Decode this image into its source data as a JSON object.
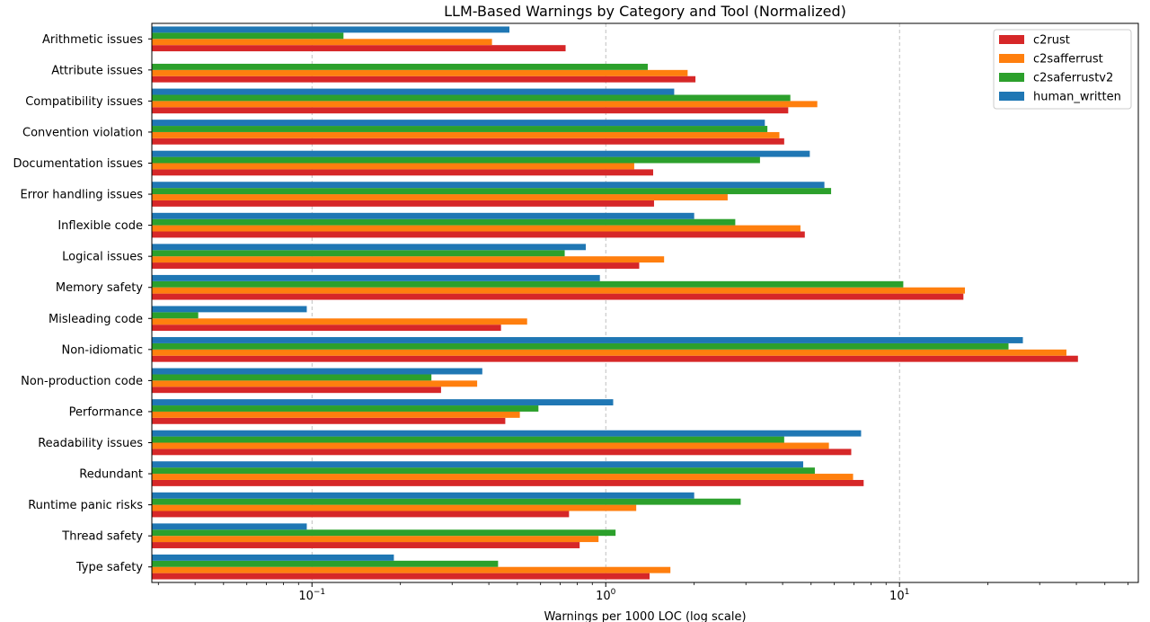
{
  "chart_data": {
    "type": "bar",
    "orientation": "horizontal",
    "title": "LLM-Based Warnings by Category and Tool (Normalized)",
    "xlabel": "Warnings per 1000 LOC (log scale)",
    "ylabel": "",
    "xscale": "log",
    "xlim": [
      0.0285,
      65
    ],
    "x_ticks": [
      {
        "value": 0.1,
        "base": "10",
        "exp": "−1"
      },
      {
        "value": 1,
        "base": "10",
        "exp": "0"
      },
      {
        "value": 10,
        "base": "10",
        "exp": "1"
      }
    ],
    "grid": "x-major dashed",
    "legend_position": "top-right",
    "categories": [
      "Arithmetic issues",
      "Attribute issues",
      "Compatibility issues",
      "Convention violation",
      "Documentation issues",
      "Error handling issues",
      "Inflexible code",
      "Logical issues",
      "Memory safety",
      "Misleading code",
      "Non-idiomatic",
      "Non-production code",
      "Performance",
      "Readability issues",
      "Redundant",
      "Runtime panic risks",
      "Thread safety",
      "Type safety"
    ],
    "series": [
      {
        "name": "c2rust",
        "color": "#d62728",
        "values": [
          0.73,
          2.02,
          4.18,
          4.05,
          1.45,
          1.46,
          4.76,
          1.3,
          16.5,
          0.44,
          40.5,
          0.275,
          0.455,
          6.85,
          7.55,
          0.75,
          0.815,
          1.41
        ]
      },
      {
        "name": "c2safferrust",
        "color": "#ff7f0e",
        "values": [
          0.41,
          1.9,
          5.25,
          3.9,
          1.25,
          2.6,
          4.6,
          1.58,
          16.7,
          0.54,
          37.0,
          0.365,
          0.51,
          5.75,
          6.95,
          1.27,
          0.945,
          1.66
        ]
      },
      {
        "name": "c2saferrustv2",
        "color": "#2ca02c",
        "values": [
          0.128,
          1.39,
          4.25,
          3.55,
          3.35,
          5.85,
          2.76,
          0.725,
          10.3,
          0.041,
          23.5,
          0.255,
          0.59,
          4.05,
          5.15,
          2.88,
          1.08,
          0.43
        ]
      },
      {
        "name": "human_written",
        "color": "#1f77b4",
        "values": [
          0.47,
          null,
          1.71,
          3.48,
          4.95,
          5.55,
          2.0,
          0.855,
          0.955,
          0.096,
          26.3,
          0.38,
          1.06,
          7.4,
          4.7,
          2.0,
          0.096,
          0.19
        ]
      }
    ]
  }
}
